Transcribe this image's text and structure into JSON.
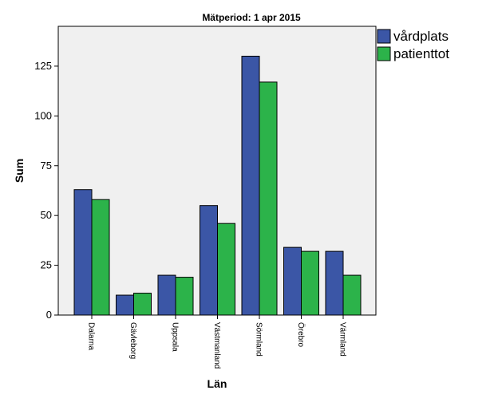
{
  "chart_data": {
    "type": "bar",
    "title": "Mätperiod: 1 apr 2015",
    "xlabel": "Län",
    "ylabel": "Sum",
    "categories": [
      "Dalarna",
      "Gävleborg",
      "Uppsala",
      "Västmanland",
      "Sörmland",
      "Örebro",
      "Värmland"
    ],
    "series": [
      {
        "name": "vårdplats",
        "values": [
          63,
          10,
          20,
          55,
          130,
          34,
          32
        ],
        "color": "#3b56a6"
      },
      {
        "name": "patienttot",
        "values": [
          58,
          11,
          19,
          46,
          117,
          32,
          20
        ],
        "color": "#2cb34a"
      }
    ],
    "ylim": [
      0,
      145
    ],
    "yticks": [
      0,
      25,
      50,
      75,
      100,
      125
    ],
    "ytick_labels": [
      "0",
      "25",
      "50",
      "75",
      "100",
      "125"
    ],
    "grid": false,
    "legend": "top-right outside",
    "plot_background": "#f0f0f0"
  }
}
